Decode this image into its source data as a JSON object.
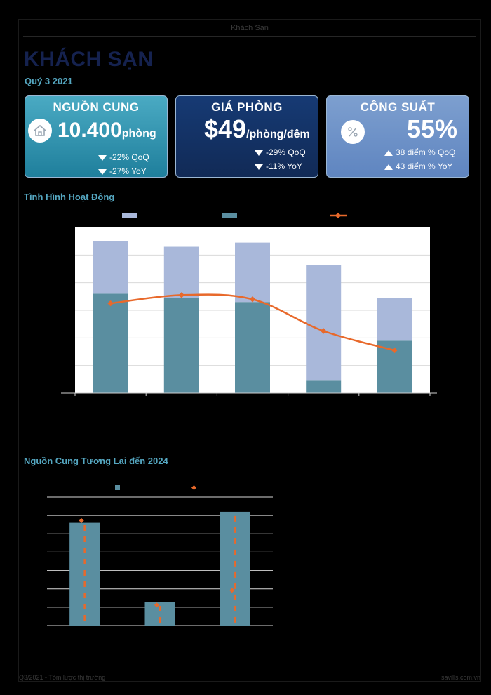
{
  "header": {
    "title": "Khách Sạn"
  },
  "page": {
    "title": "KHÁCH SẠN",
    "subtitle": "Quý 3 2021"
  },
  "cards": {
    "supply": {
      "label": "NGUỒN CUNG",
      "value": "10.400",
      "unit": "phòng",
      "changes": [
        "-22% QoQ",
        "-27% YoY"
      ],
      "icon": "house-icon"
    },
    "price": {
      "label": "GIÁ PHÒNG",
      "value": "$49",
      "unit": "/phòng/đêm",
      "changes": [
        "-29% QoQ",
        "-11% YoY"
      ]
    },
    "occupancy": {
      "label": "CÔNG SUẤT",
      "value": "55%",
      "changes": [
        "38 điểm % QoQ",
        "43 điểm % YoY"
      ],
      "icon": "percent-icon"
    }
  },
  "sections": {
    "performance": "Tình Hình Hoạt Động",
    "future_supply": "Nguồn Cung Tương Lai đến 2024"
  },
  "footer": {
    "left": "Q3/2021 - Tóm lược thị trường",
    "right": "savills.com.vn"
  },
  "colors": {
    "light_bar": "#a9b8da",
    "dark_bar": "#5a8ea0",
    "line": "#e8692b",
    "title_dark": "#15224f",
    "accent": "#55a7c1"
  },
  "chart_data": [
    {
      "type": "bar",
      "stacked": true,
      "categories": [
        "",
        "",
        "",
        "",
        ""
      ],
      "series": [
        {
          "type": "bar",
          "values": [
            72,
            69,
            66,
            9,
            38
          ]
        },
        {
          "type": "bar",
          "values": [
            38,
            37,
            43,
            84,
            31
          ]
        },
        {
          "type": "line",
          "values": [
            65,
            71,
            68,
            45,
            31
          ]
        }
      ],
      "ylim": [
        0,
        120
      ],
      "grid": true
    },
    {
      "type": "bar",
      "categories": [
        "",
        "",
        ""
      ],
      "series": [
        {
          "type": "bar",
          "values": [
            5.6,
            1.3,
            6.2
          ]
        },
        {
          "type": "line",
          "values": [
            5.7,
            1.1,
            1.9
          ]
        }
      ],
      "ylim": [
        0,
        7
      ],
      "grid": true
    }
  ]
}
